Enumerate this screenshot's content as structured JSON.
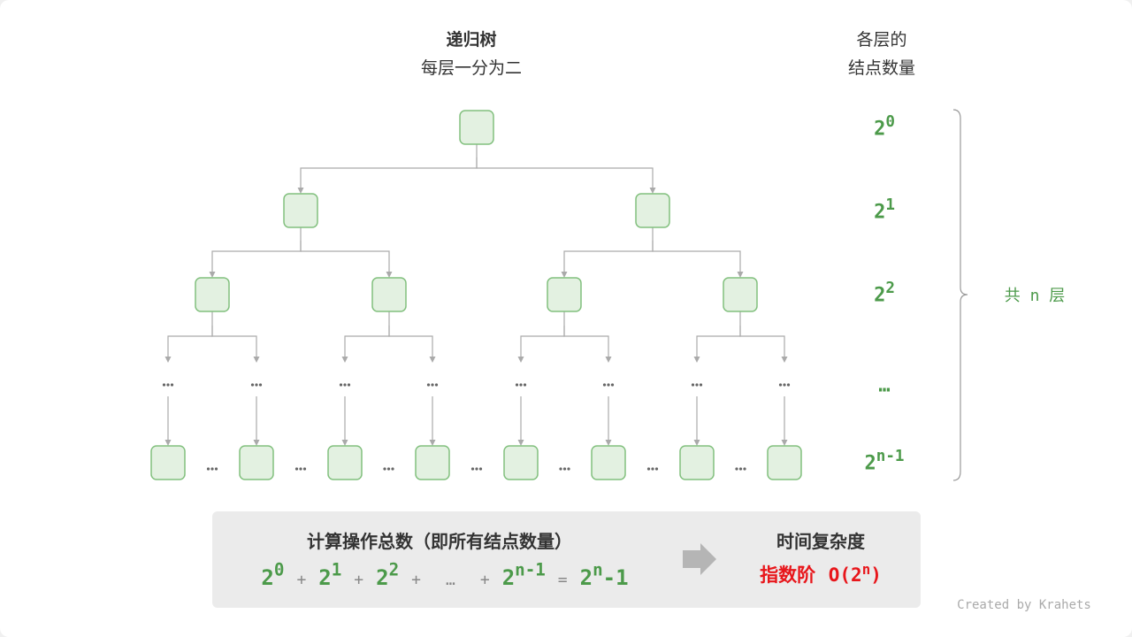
{
  "header": {
    "title": "递归树",
    "subtitle": "每层一分为二",
    "right_title_1": "各层的",
    "right_title_2": "结点数量"
  },
  "levels": [
    {
      "base": "2",
      "exp": "0"
    },
    {
      "base": "2",
      "exp": "1"
    },
    {
      "base": "2",
      "exp": "2"
    },
    {
      "base": "…",
      "exp": ""
    },
    {
      "base": "2",
      "exp": "n-1"
    }
  ],
  "total_layers": "共 n 层",
  "ellipsis": "•••",
  "summary": {
    "title": "计算操作总数（即所有结点数量）",
    "terms": [
      {
        "base": "2",
        "exp": "0"
      },
      {
        "op": "+"
      },
      {
        "base": "2",
        "exp": "1"
      },
      {
        "op": "+"
      },
      {
        "base": "2",
        "exp": "2"
      },
      {
        "op": "+"
      },
      {
        "op": "…"
      },
      {
        "op": "+"
      },
      {
        "base": "2",
        "exp": "n-1"
      },
      {
        "op": "="
      },
      {
        "base": "2",
        "exp": "n",
        "tail": "-1"
      }
    ],
    "complexity_title": "时间复杂度",
    "complexity_label": "指数阶",
    "complexity_value_pre": "O(2",
    "complexity_value_exp": "n",
    "complexity_value_post": ")"
  },
  "credit": "Created by Krahets",
  "colors": {
    "node_fill": "#e3f1e1",
    "node_stroke": "#82c07e",
    "green": "#4c9a4a",
    "red": "#e8161b",
    "line": "#aaaaaa"
  }
}
